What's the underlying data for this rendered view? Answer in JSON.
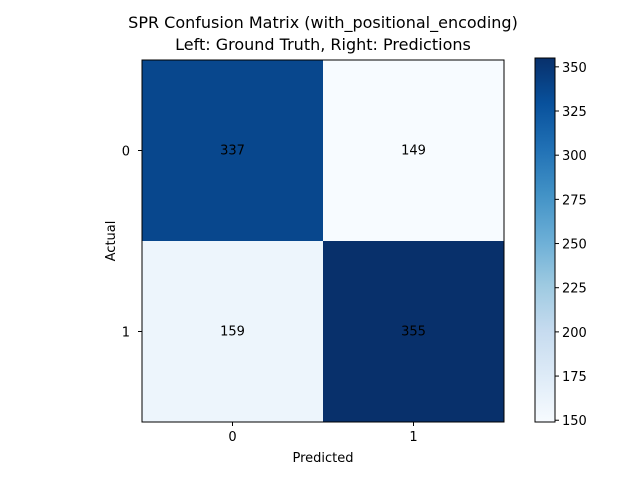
{
  "chart_data": {
    "type": "heatmap",
    "title_lines": [
      "SPR Confusion Matrix (with_positional_encoding)",
      "Left: Ground Truth, Right: Predictions"
    ],
    "xlabel": "Predicted",
    "ylabel": "Actual",
    "x_categories": [
      "0",
      "1"
    ],
    "y_categories": [
      "0",
      "1"
    ],
    "matrix": [
      [
        337,
        149
      ],
      [
        159,
        355
      ]
    ],
    "colormap": "Blues",
    "colorbar": {
      "min": 149,
      "max": 355,
      "ticks": [
        "150",
        "175",
        "200",
        "225",
        "250",
        "275",
        "300",
        "325",
        "350"
      ]
    }
  }
}
